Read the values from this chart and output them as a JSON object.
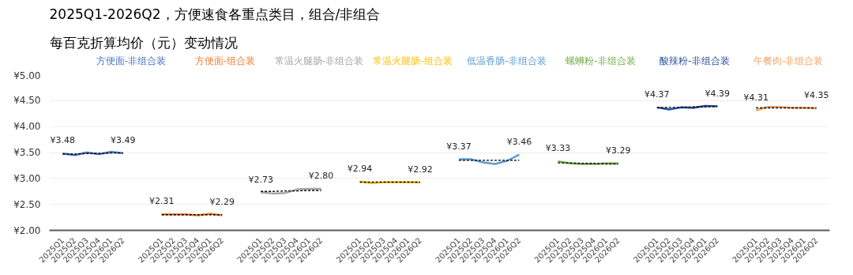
{
  "chart_data": {
    "type": "line",
    "title": "2025Q1-2026Q2，方便速食各重点类目，组合/非组合",
    "subtitle": "每百克折算均价（元）变动情况",
    "categories": [
      "2025Q1",
      "2025Q2",
      "2025Q3",
      "2025Q4",
      "2026Q1",
      "2026Q2",
      "2025Q1",
      "2025Q2",
      "2025Q3",
      "2025Q4",
      "2026Q1",
      "2026Q2",
      "2025Q1",
      "2025Q2",
      "2025Q3",
      "2025Q4",
      "2026Q1",
      "2026Q2",
      "2025Q1",
      "2025Q2",
      "2025Q3",
      "2025Q4",
      "2026Q1",
      "2026Q2",
      "2025Q1",
      "2025Q2",
      "2025Q3",
      "2025Q4",
      "2026Q1",
      "2026Q2",
      "2025Q1",
      "2025Q2",
      "2025Q3",
      "2025Q4",
      "2026Q1",
      "2026Q2",
      "2025Q1",
      "2025Q2",
      "2025Q3",
      "2025Q4",
      "2026Q1",
      "2026Q2",
      "2025Q1",
      "2025Q2",
      "2025Q3",
      "2025Q4",
      "2026Q1",
      "2026Q2"
    ],
    "ylim": [
      2,
      5
    ],
    "yticks": [
      {
        "value": 2,
        "label": "¥2.00"
      },
      {
        "value": 2.5,
        "label": "¥2.50"
      },
      {
        "value": 3,
        "label": "¥3.00"
      },
      {
        "value": 3.5,
        "label": "¥3.50"
      },
      {
        "value": 4,
        "label": "¥4.00"
      },
      {
        "value": 4.5,
        "label": "¥4.50"
      },
      {
        "value": 5,
        "label": "¥5.00"
      }
    ],
    "grid": "y",
    "legend": false,
    "marker": "none",
    "line_style": "solid",
    "series": [
      {
        "name": "方便面-非组合装",
        "color": "#4472c4",
        "values": [
          3.48,
          3.45,
          3.5,
          3.47,
          3.51,
          3.49,
          null,
          null,
          null,
          null,
          null,
          null,
          null,
          null,
          null,
          null,
          null,
          null,
          null,
          null,
          null,
          null,
          null,
          null,
          null,
          null,
          null,
          null,
          null,
          null,
          null,
          null,
          null,
          null,
          null,
          null,
          null,
          null,
          null,
          null,
          null,
          null,
          null,
          null,
          null,
          null,
          null,
          null
        ],
        "value_labels": [
          "¥3.48",
          null,
          null,
          null,
          null,
          "¥3.49",
          null,
          null,
          null,
          null,
          null,
          null,
          null,
          null,
          null,
          null,
          null,
          null,
          null,
          null,
          null,
          null,
          null,
          null,
          null,
          null,
          null,
          null,
          null,
          null,
          null,
          null,
          null,
          null,
          null,
          null,
          null,
          null,
          null,
          null,
          null,
          null,
          null,
          null,
          null,
          null,
          null,
          null
        ]
      },
      {
        "name": "方便面-组合装",
        "color": "#ed7d31",
        "values": [
          null,
          null,
          null,
          null,
          null,
          null,
          2.31,
          2.31,
          2.31,
          2.29,
          2.32,
          2.29,
          null,
          null,
          null,
          null,
          null,
          null,
          null,
          null,
          null,
          null,
          null,
          null,
          null,
          null,
          null,
          null,
          null,
          null,
          null,
          null,
          null,
          null,
          null,
          null,
          null,
          null,
          null,
          null,
          null,
          null,
          null,
          null,
          null,
          null,
          null,
          null
        ],
        "value_labels": [
          null,
          null,
          null,
          null,
          null,
          null,
          "¥2.31",
          null,
          null,
          null,
          null,
          "¥2.29",
          null,
          null,
          null,
          null,
          null,
          null,
          null,
          null,
          null,
          null,
          null,
          null,
          null,
          null,
          null,
          null,
          null,
          null,
          null,
          null,
          null,
          null,
          null,
          null,
          null,
          null,
          null,
          null,
          null,
          null,
          null,
          null,
          null,
          null,
          null,
          null
        ]
      },
      {
        "name": "常温火腿肠-非组合装",
        "color": "#a5a5a5",
        "values": [
          null,
          null,
          null,
          null,
          null,
          null,
          null,
          null,
          null,
          null,
          null,
          null,
          2.73,
          2.71,
          2.72,
          2.79,
          2.8,
          2.8,
          null,
          null,
          null,
          null,
          null,
          null,
          null,
          null,
          null,
          null,
          null,
          null,
          null,
          null,
          null,
          null,
          null,
          null,
          null,
          null,
          null,
          null,
          null,
          null,
          null,
          null,
          null,
          null,
          null,
          null
        ],
        "value_labels": [
          null,
          null,
          null,
          null,
          null,
          null,
          null,
          null,
          null,
          null,
          null,
          null,
          "¥2.73",
          null,
          null,
          null,
          null,
          "¥2.80",
          null,
          null,
          null,
          null,
          null,
          null,
          null,
          null,
          null,
          null,
          null,
          null,
          null,
          null,
          null,
          null,
          null,
          null,
          null,
          null,
          null,
          null,
          null,
          null,
          null,
          null,
          null,
          null,
          null,
          null
        ]
      },
      {
        "name": "常温火腿肠-组合装",
        "color": "#ffc000",
        "values": [
          null,
          null,
          null,
          null,
          null,
          null,
          null,
          null,
          null,
          null,
          null,
          null,
          null,
          null,
          null,
          null,
          null,
          null,
          2.94,
          2.91,
          2.93,
          2.93,
          2.93,
          2.92,
          null,
          null,
          null,
          null,
          null,
          null,
          null,
          null,
          null,
          null,
          null,
          null,
          null,
          null,
          null,
          null,
          null,
          null,
          null,
          null,
          null,
          null,
          null,
          null
        ],
        "value_labels": [
          null,
          null,
          null,
          null,
          null,
          null,
          null,
          null,
          null,
          null,
          null,
          null,
          null,
          null,
          null,
          null,
          null,
          null,
          "¥2.94",
          null,
          null,
          null,
          null,
          "¥2.92",
          null,
          null,
          null,
          null,
          null,
          null,
          null,
          null,
          null,
          null,
          null,
          null,
          null,
          null,
          null,
          null,
          null,
          null,
          null,
          null,
          null,
          null,
          null,
          null
        ]
      },
      {
        "name": "低温香肠-非组合装",
        "color": "#5b9bd5",
        "values": [
          null,
          null,
          null,
          null,
          null,
          null,
          null,
          null,
          null,
          null,
          null,
          null,
          null,
          null,
          null,
          null,
          null,
          null,
          null,
          null,
          null,
          null,
          null,
          null,
          3.37,
          3.37,
          3.31,
          3.28,
          3.34,
          3.46,
          null,
          null,
          null,
          null,
          null,
          null,
          null,
          null,
          null,
          null,
          null,
          null,
          null,
          null,
          null,
          null,
          null,
          null
        ],
        "value_labels": [
          null,
          null,
          null,
          null,
          null,
          null,
          null,
          null,
          null,
          null,
          null,
          null,
          null,
          null,
          null,
          null,
          null,
          null,
          null,
          null,
          null,
          null,
          null,
          null,
          "¥3.37",
          null,
          null,
          null,
          null,
          "¥3.46",
          null,
          null,
          null,
          null,
          null,
          null,
          null,
          null,
          null,
          null,
          null,
          null,
          null,
          null,
          null,
          null,
          null,
          null
        ]
      },
      {
        "name": "螺蛳粉-非组合装",
        "color": "#70ad47",
        "values": [
          null,
          null,
          null,
          null,
          null,
          null,
          null,
          null,
          null,
          null,
          null,
          null,
          null,
          null,
          null,
          null,
          null,
          null,
          null,
          null,
          null,
          null,
          null,
          null,
          null,
          null,
          null,
          null,
          null,
          null,
          3.33,
          3.29,
          3.28,
          3.28,
          3.29,
          3.29,
          null,
          null,
          null,
          null,
          null,
          null,
          null,
          null,
          null,
          null,
          null,
          null
        ],
        "value_labels": [
          null,
          null,
          null,
          null,
          null,
          null,
          null,
          null,
          null,
          null,
          null,
          null,
          null,
          null,
          null,
          null,
          null,
          null,
          null,
          null,
          null,
          null,
          null,
          null,
          null,
          null,
          null,
          null,
          null,
          null,
          "¥3.33",
          null,
          null,
          null,
          null,
          "¥3.29",
          null,
          null,
          null,
          null,
          null,
          null,
          null,
          null,
          null,
          null,
          null,
          null
        ]
      },
      {
        "name": "酸辣粉-非组合装",
        "color": "#264f9e",
        "values": [
          null,
          null,
          null,
          null,
          null,
          null,
          null,
          null,
          null,
          null,
          null,
          null,
          null,
          null,
          null,
          null,
          null,
          null,
          null,
          null,
          null,
          null,
          null,
          null,
          null,
          null,
          null,
          null,
          null,
          null,
          null,
          null,
          null,
          null,
          null,
          null,
          4.37,
          4.33,
          4.37,
          4.36,
          4.4,
          4.39,
          null,
          null,
          null,
          null,
          null,
          null
        ],
        "value_labels": [
          null,
          null,
          null,
          null,
          null,
          null,
          null,
          null,
          null,
          null,
          null,
          null,
          null,
          null,
          null,
          null,
          null,
          null,
          null,
          null,
          null,
          null,
          null,
          null,
          null,
          null,
          null,
          null,
          null,
          null,
          null,
          null,
          null,
          null,
          null,
          null,
          "¥4.37",
          null,
          null,
          null,
          null,
          "¥4.39",
          null,
          null,
          null,
          null,
          null,
          null
        ]
      },
      {
        "name": "午餐肉-非组合装",
        "color": "#f4a460",
        "values": [
          null,
          null,
          null,
          null,
          null,
          null,
          null,
          null,
          null,
          null,
          null,
          null,
          null,
          null,
          null,
          null,
          null,
          null,
          null,
          null,
          null,
          null,
          null,
          null,
          null,
          null,
          null,
          null,
          null,
          null,
          null,
          null,
          null,
          null,
          null,
          null,
          null,
          null,
          null,
          null,
          null,
          null,
          4.31,
          4.38,
          4.38,
          4.36,
          4.36,
          4.35
        ],
        "value_labels": [
          null,
          null,
          null,
          null,
          null,
          null,
          null,
          null,
          null,
          null,
          null,
          null,
          null,
          null,
          null,
          null,
          null,
          null,
          null,
          null,
          null,
          null,
          null,
          null,
          null,
          null,
          null,
          null,
          null,
          null,
          null,
          null,
          null,
          null,
          null,
          null,
          null,
          null,
          null,
          null,
          null,
          null,
          "¥4.31",
          null,
          null,
          null,
          null,
          "¥4.35"
        ]
      },
      {
        "color": "#000000",
        "line_style": "dashed",
        "values": [
          3.47,
          3.47,
          3.48,
          3.48,
          3.49,
          3.49,
          null,
          null,
          null,
          null,
          null,
          null,
          null,
          null,
          null,
          null,
          null,
          null,
          null,
          null,
          null,
          null,
          null,
          null,
          null,
          null,
          null,
          null,
          null,
          null,
          null,
          null,
          null,
          null,
          null,
          null,
          null,
          null,
          null,
          null,
          null,
          null,
          null,
          null,
          null,
          null,
          null,
          null
        ]
      },
      {
        "color": "#000000",
        "line_style": "dashed",
        "values": [
          null,
          null,
          null,
          null,
          null,
          null,
          2.3,
          2.3,
          2.3,
          2.3,
          2.3,
          2.3,
          null,
          null,
          null,
          null,
          null,
          null,
          null,
          null,
          null,
          null,
          null,
          null,
          null,
          null,
          null,
          null,
          null,
          null,
          null,
          null,
          null,
          null,
          null,
          null,
          null,
          null,
          null,
          null,
          null,
          null,
          null,
          null,
          null,
          null,
          null,
          null
        ]
      },
      {
        "color": "#000000",
        "line_style": "dashed",
        "values": [
          null,
          null,
          null,
          null,
          null,
          null,
          null,
          null,
          null,
          null,
          null,
          null,
          2.75,
          2.75,
          2.76,
          2.76,
          2.77,
          2.77,
          null,
          null,
          null,
          null,
          null,
          null,
          null,
          null,
          null,
          null,
          null,
          null,
          null,
          null,
          null,
          null,
          null,
          null,
          null,
          null,
          null,
          null,
          null,
          null,
          null,
          null,
          null,
          null,
          null,
          null
        ]
      },
      {
        "color": "#000000",
        "line_style": "dashed",
        "values": [
          null,
          null,
          null,
          null,
          null,
          null,
          null,
          null,
          null,
          null,
          null,
          null,
          null,
          null,
          null,
          null,
          null,
          null,
          2.93,
          2.93,
          2.93,
          2.93,
          2.93,
          2.93,
          null,
          null,
          null,
          null,
          null,
          null,
          null,
          null,
          null,
          null,
          null,
          null,
          null,
          null,
          null,
          null,
          null,
          null,
          null,
          null,
          null,
          null,
          null,
          null
        ]
      },
      {
        "color": "#000000",
        "line_style": "dashed",
        "values": [
          null,
          null,
          null,
          null,
          null,
          null,
          null,
          null,
          null,
          null,
          null,
          null,
          null,
          null,
          null,
          null,
          null,
          null,
          null,
          null,
          null,
          null,
          null,
          null,
          3.35,
          3.35,
          3.35,
          3.35,
          3.35,
          3.35,
          null,
          null,
          null,
          null,
          null,
          null,
          null,
          null,
          null,
          null,
          null,
          null,
          null,
          null,
          null,
          null,
          null,
          null
        ]
      },
      {
        "color": "#000000",
        "line_style": "dashed",
        "values": [
          null,
          null,
          null,
          null,
          null,
          null,
          null,
          null,
          null,
          null,
          null,
          null,
          null,
          null,
          null,
          null,
          null,
          null,
          null,
          null,
          null,
          null,
          null,
          null,
          null,
          null,
          null,
          null,
          null,
          null,
          3.3,
          3.3,
          3.29,
          3.29,
          3.28,
          3.28,
          null,
          null,
          null,
          null,
          null,
          null,
          null,
          null,
          null,
          null,
          null,
          null
        ]
      },
      {
        "color": "#000000",
        "line_style": "dashed",
        "values": [
          null,
          null,
          null,
          null,
          null,
          null,
          null,
          null,
          null,
          null,
          null,
          null,
          null,
          null,
          null,
          null,
          null,
          null,
          null,
          null,
          null,
          null,
          null,
          null,
          null,
          null,
          null,
          null,
          null,
          null,
          null,
          null,
          null,
          null,
          null,
          null,
          4.36,
          4.37,
          4.37,
          4.38,
          4.38,
          4.39,
          null,
          null,
          null,
          null,
          null,
          null
        ]
      },
      {
        "color": "#000000",
        "line_style": "dashed",
        "values": [
          null,
          null,
          null,
          null,
          null,
          null,
          null,
          null,
          null,
          null,
          null,
          null,
          null,
          null,
          null,
          null,
          null,
          null,
          null,
          null,
          null,
          null,
          null,
          null,
          null,
          null,
          null,
          null,
          null,
          null,
          null,
          null,
          null,
          null,
          null,
          null,
          null,
          null,
          null,
          null,
          null,
          null,
          4.36,
          4.36,
          4.36,
          4.36,
          4.36,
          4.36
        ]
      }
    ]
  }
}
